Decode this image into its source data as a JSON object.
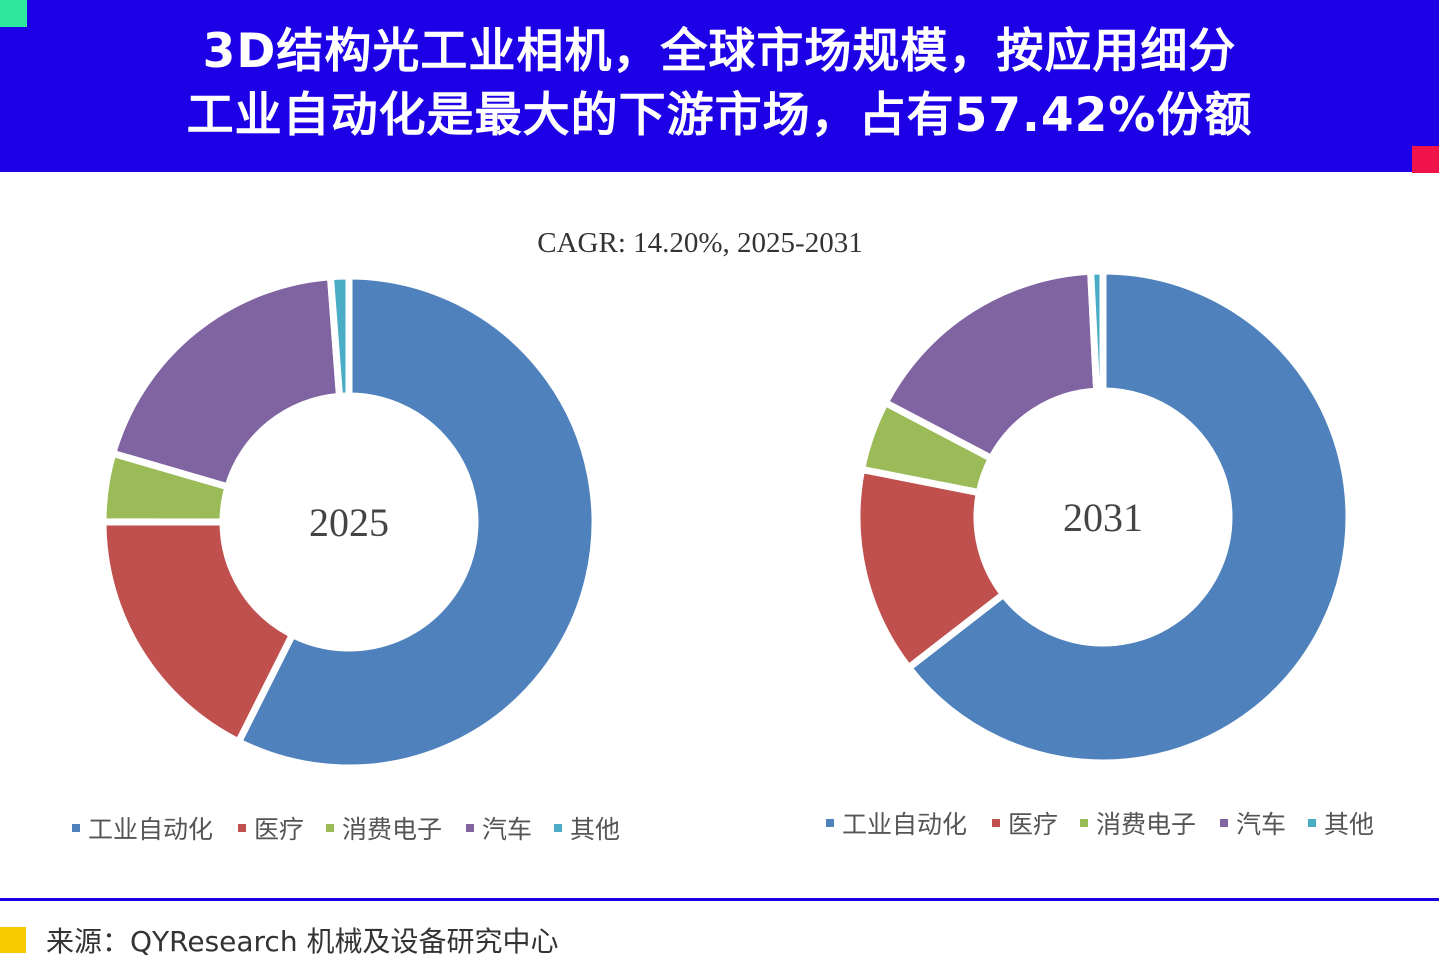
{
  "header": {
    "title_line1": "3D结构光工业相机，全球市场规模，按应用细分",
    "title_line2": "工业自动化是最大的下游市场，占有57.42%份额"
  },
  "colors": {
    "header_bg": "#1E00E6",
    "corner_green": "#2EE8A0",
    "corner_red": "#F0144A",
    "footer_mark": "#F8C800"
  },
  "chart_data": {
    "type": "pie",
    "subtype": "donut",
    "title": "CAGR:  14.20%, 2025-2031",
    "categories": [
      "工业自动化",
      "医疗",
      "消费电子",
      "汽车",
      "其他"
    ],
    "colors": [
      "#4F81BD",
      "#C0504D",
      "#9BBB59",
      "#8064A2",
      "#4BACC6"
    ],
    "charts": [
      {
        "label": "2025",
        "values": [
          57.42,
          17.6,
          4.5,
          19.3,
          1.2
        ]
      },
      {
        "label": "2031",
        "values": [
          64.5,
          13.6,
          4.6,
          16.5,
          0.8
        ]
      }
    ],
    "legend_position": "bottom"
  },
  "footer": {
    "source": "来源：QYResearch 机械及设备研究中心"
  }
}
